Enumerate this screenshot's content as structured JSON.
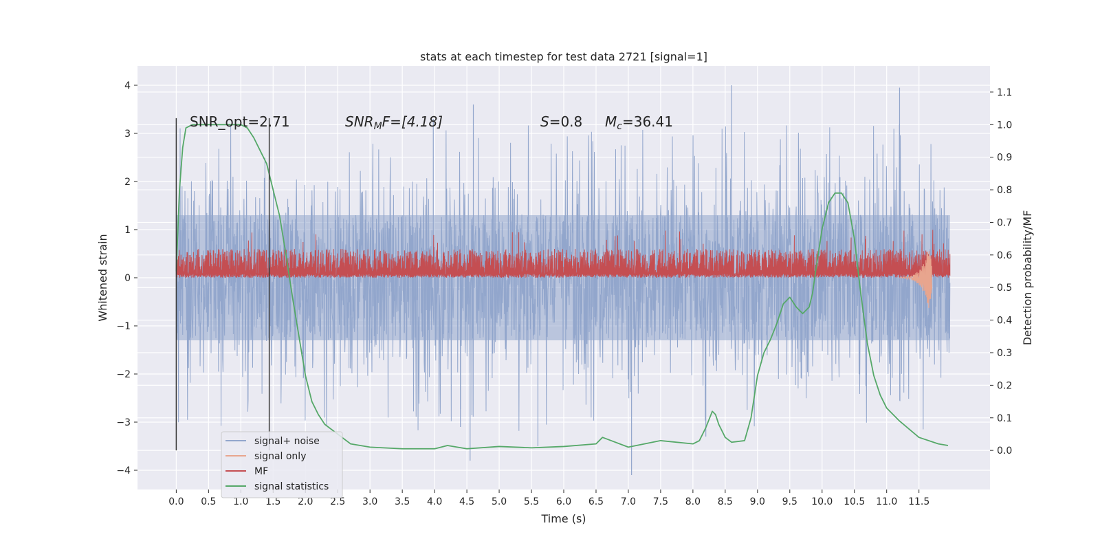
{
  "chart_data": {
    "type": "line",
    "title": "stats at each timestep for test data 2721 [signal=1]",
    "xlabel": "Time (s)",
    "ylabel": "Whitened strain",
    "y2label": "Detection probability/MF",
    "xlim": [
      -0.6,
      12.6
    ],
    "ylim": [
      -4.4,
      4.4
    ],
    "y2lim": [
      -0.12,
      1.18
    ],
    "x_ticks": [
      0.0,
      0.5,
      1.0,
      1.5,
      2.0,
      2.5,
      3.0,
      3.5,
      4.0,
      4.5,
      5.0,
      5.5,
      6.0,
      6.5,
      7.0,
      7.5,
      8.0,
      8.5,
      9.0,
      9.5,
      10.0,
      10.5,
      11.0,
      11.5
    ],
    "x_tick_labels": [
      "0.0",
      "0.5",
      "1.0",
      "1.5",
      "2.0",
      "2.5",
      "3.0",
      "3.5",
      "4.0",
      "4.5",
      "5.0",
      "5.5",
      "6.0",
      "6.5",
      "7.0",
      "7.5",
      "8.0",
      "8.5",
      "9.0",
      "9.5",
      "10.0",
      "10.5",
      "11.0",
      "11.5"
    ],
    "y_ticks": [
      -4,
      -3,
      -2,
      -1,
      0,
      1,
      2,
      3,
      4
    ],
    "y_tick_labels": [
      "−4",
      "−3",
      "−2",
      "−1",
      "0",
      "1",
      "2",
      "3",
      "4"
    ],
    "y2_ticks": [
      0.0,
      0.1,
      0.2,
      0.3,
      0.4,
      0.5,
      0.6,
      0.7,
      0.8,
      0.9,
      1.0,
      1.1
    ],
    "y2_tick_labels": [
      "0.0",
      "0.1",
      "0.2",
      "0.3",
      "0.4",
      "0.5",
      "0.6",
      "0.7",
      "0.8",
      "0.9",
      "1.0",
      "1.1"
    ],
    "grid": true,
    "legend_placement": "lower-left",
    "annotations": {
      "snr_opt": "SNR_opt=2.71",
      "snr_mf_main": "SNR",
      "snr_mf_sub": "M",
      "snr_mf_rest": "F=[4.18]",
      "s_main": "S",
      "s_rest": "=0.8",
      "mc_main": "M",
      "mc_sub": "c",
      "mc_rest": "=36.41"
    },
    "vertical_lines_x": [
      0.0,
      1.44
    ],
    "series": [
      {
        "name": "signal+ noise",
        "color": "#92a6cc",
        "style": "noise",
        "x_range": [
          0.0,
          11.98
        ],
        "core_amplitude": 1.3,
        "max_peak": 4.0,
        "min_peak": -4.1
      },
      {
        "name": "signal only",
        "color": "#e8a58e",
        "style": "chirp",
        "x": [
          11.2,
          11.4,
          11.5,
          11.6,
          11.65,
          11.7
        ],
        "values": [
          0.0,
          -0.05,
          -0.15,
          -0.35,
          -0.65,
          -0.3
        ]
      },
      {
        "name": "MF",
        "color": "#c44e52",
        "style": "band",
        "x_range": [
          0.0,
          11.98
        ],
        "baseline": 0.0,
        "typical_high": 0.6,
        "max_peak": 1.0
      },
      {
        "name": "signal statistics",
        "color": "#55a868",
        "style": "line",
        "axis": "right",
        "x": [
          0.0,
          0.05,
          0.1,
          0.15,
          0.25,
          0.4,
          0.6,
          0.8,
          1.0,
          1.1,
          1.2,
          1.3,
          1.4,
          1.5,
          1.6,
          1.7,
          1.8,
          1.9,
          2.0,
          2.1,
          2.2,
          2.3,
          2.5,
          2.7,
          3.0,
          3.5,
          4.0,
          4.2,
          4.5,
          5.0,
          5.5,
          6.0,
          6.5,
          6.6,
          7.0,
          7.5,
          8.0,
          8.1,
          8.2,
          8.3,
          8.35,
          8.4,
          8.5,
          8.6,
          8.8,
          8.9,
          9.0,
          9.1,
          9.2,
          9.3,
          9.4,
          9.5,
          9.6,
          9.7,
          9.8,
          9.85,
          9.9,
          10.0,
          10.1,
          10.2,
          10.3,
          10.4,
          10.5,
          10.6,
          10.7,
          10.8,
          10.9,
          11.0,
          11.2,
          11.5,
          11.8,
          11.95
        ],
        "values": [
          0.55,
          0.8,
          0.93,
          0.99,
          1.0,
          1.0,
          1.0,
          1.0,
          1.0,
          0.99,
          0.96,
          0.92,
          0.88,
          0.8,
          0.72,
          0.6,
          0.47,
          0.35,
          0.23,
          0.15,
          0.11,
          0.08,
          0.05,
          0.02,
          0.01,
          0.005,
          0.005,
          0.015,
          0.005,
          0.012,
          0.008,
          0.012,
          0.02,
          0.04,
          0.01,
          0.03,
          0.02,
          0.03,
          0.07,
          0.12,
          0.11,
          0.08,
          0.04,
          0.025,
          0.03,
          0.1,
          0.23,
          0.3,
          0.34,
          0.39,
          0.45,
          0.47,
          0.44,
          0.42,
          0.44,
          0.48,
          0.55,
          0.68,
          0.76,
          0.79,
          0.79,
          0.76,
          0.65,
          0.48,
          0.33,
          0.23,
          0.17,
          0.13,
          0.09,
          0.04,
          0.02,
          0.015
        ]
      }
    ]
  }
}
